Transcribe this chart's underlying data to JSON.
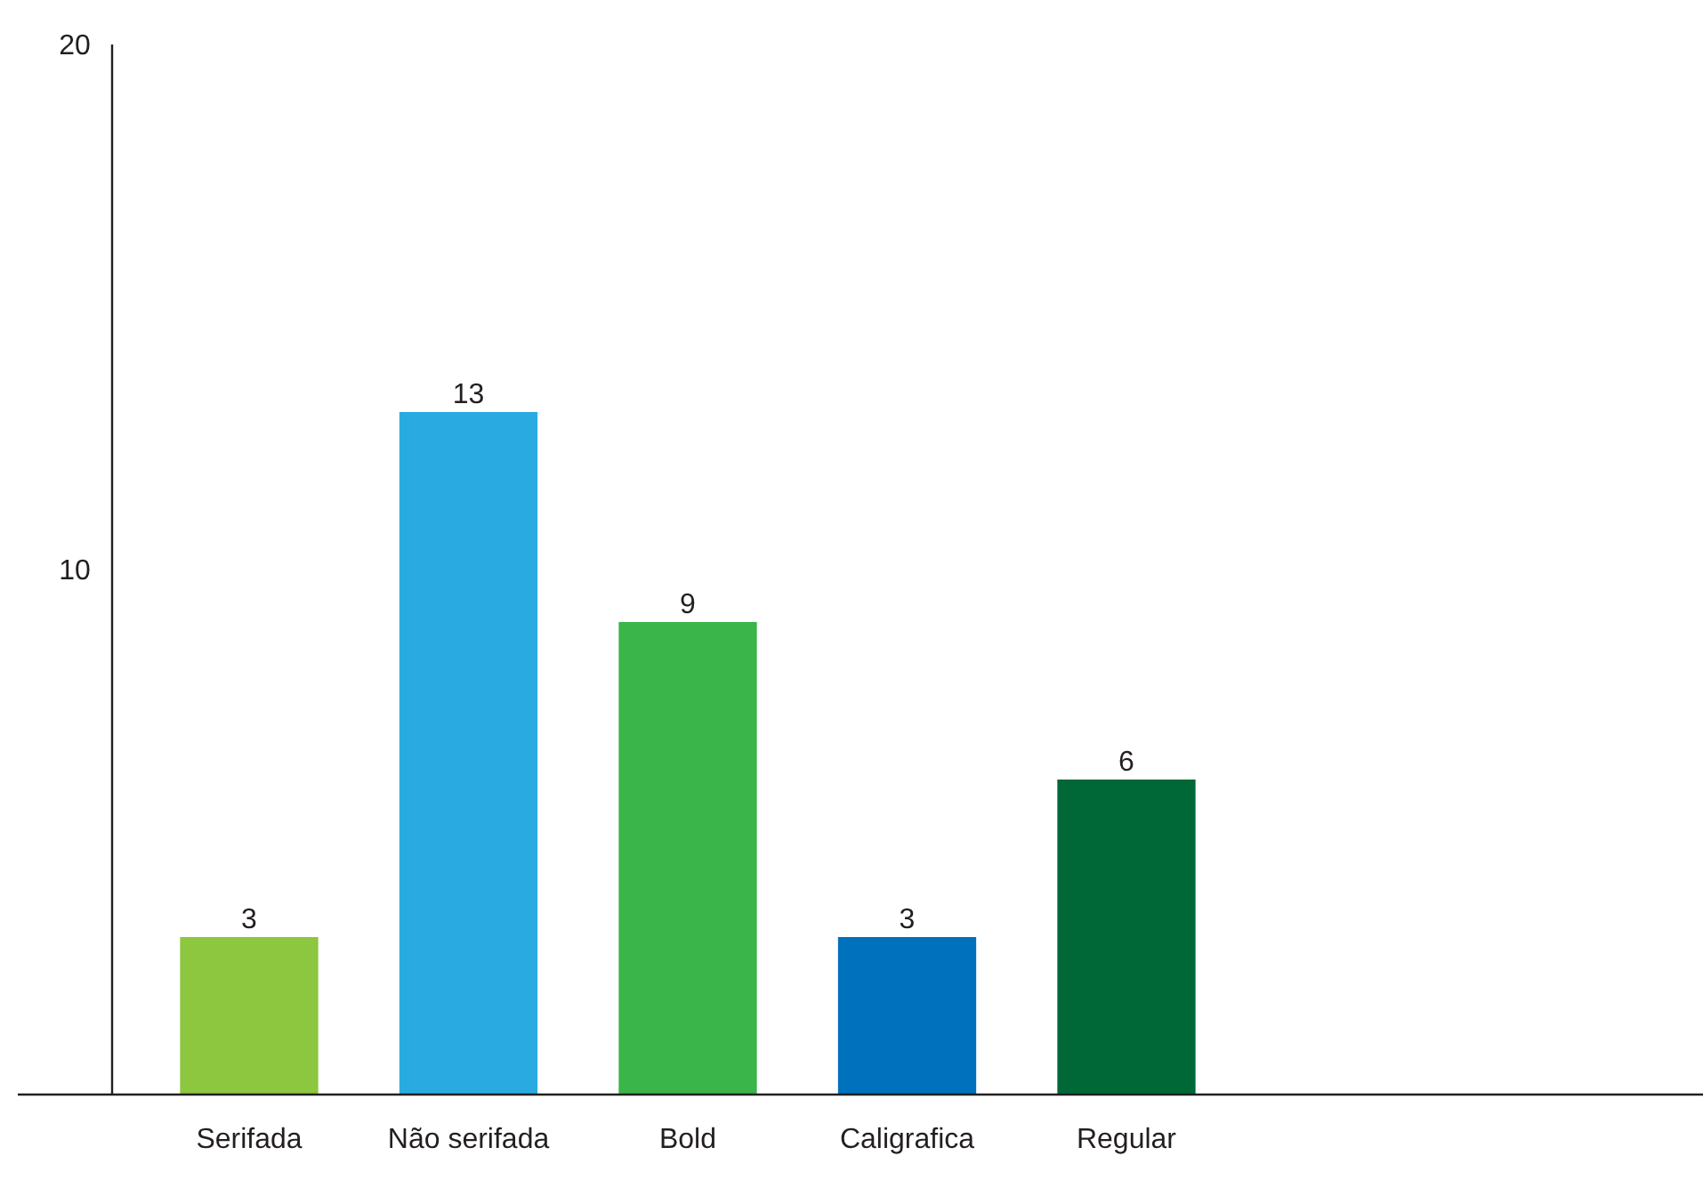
{
  "chart_data": {
    "type": "bar",
    "categories": [
      "Serifada",
      "Não serifada",
      "Bold",
      "Caligrafica",
      "Regular"
    ],
    "values": [
      3,
      13,
      9,
      3,
      6
    ],
    "colors": [
      "#8dc63f",
      "#29abe2",
      "#39b54a",
      "#0071bc",
      "#006837"
    ],
    "ylim": [
      0,
      20
    ],
    "yticks": [
      10,
      20
    ],
    "data_labels": true,
    "grid": false
  }
}
